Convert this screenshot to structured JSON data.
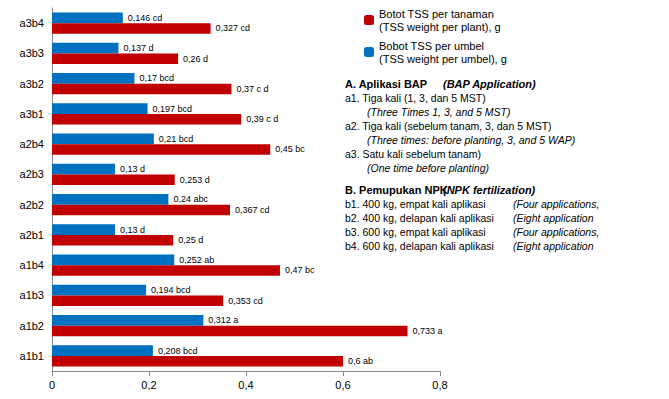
{
  "chart_data": {
    "type": "bar",
    "orientation": "horizontal",
    "categories": [
      "a1b1",
      "a1b2",
      "a1b3",
      "a1b4",
      "a2b1",
      "a2b2",
      "a2b3",
      "a2b4",
      "a3b1",
      "a3b2",
      "a3b3",
      "a3b4"
    ],
    "series": [
      {
        "name": "Botot TSS per tanaman\n(TSS weight per plant), g",
        "color": "#c00000",
        "values": [
          0.6,
          0.733,
          0.353,
          0.47,
          0.25,
          0.367,
          0.253,
          0.45,
          0.39,
          0.37,
          0.26,
          0.327
        ],
        "value_labels": [
          "0,6 ab",
          "0,733 a",
          "0,353 cd",
          "0,47 bc",
          "0,25 d",
          "0,367 cd",
          "0,253 d",
          "0,45 bc",
          "0,39 c d",
          "0,37 c d",
          "0,26 d",
          "0,327 cd"
        ]
      },
      {
        "name": "Bobot TSS per umbel\n(TSS weight per umbel), g",
        "color": "#0070c0",
        "values": [
          0.208,
          0.312,
          0.194,
          0.252,
          0.13,
          0.24,
          0.13,
          0.21,
          0.197,
          0.17,
          0.137,
          0.146
        ],
        "value_labels": [
          "0,208 bcd",
          "0,312 a",
          "0,194 bcd",
          "0,252 ab",
          "0,13 d",
          "0,24 abc",
          "0,13 d",
          "0,21 bcd",
          "0,197 bcd",
          "0,17 bcd",
          "0,137 d",
          "0,146 cd"
        ]
      }
    ],
    "xlim": [
      0,
      0.8
    ],
    "xticks": [
      0,
      {
        "value": 0.2,
        "label": "0,2"
      },
      {
        "value": 0.4,
        "label": "0,4"
      },
      {
        "value": 0.6,
        "label": "0,6"
      },
      {
        "value": 0.8,
        "label": "0,8"
      }
    ],
    "grid": false,
    "data_labels": true,
    "legend": "top-right",
    "annotations": [
      {
        "heading": "A. Aplikasi BAP",
        "translation": "(BAP Application)",
        "items": [
          {
            "label": "a1. Tiga kali (1, 3, dan 5 MST)",
            "translation": "(Three Times 1, 3, and 5 MST)"
          },
          {
            "label": "a2. Tiga kali (sebelum tanam, 3, dan 5 MST)",
            "translation": "(Three times: before planting, 3, and 5 WAP)"
          },
          {
            "label": "a3. Satu kali sebelum tanam)",
            "translation": "(One time before planting)"
          }
        ]
      },
      {
        "heading": "B. Pemupukan NPK",
        "translation": "(NPK fertilization)",
        "items": [
          {
            "label": "b1. 400 kg, empat kali aplikasi",
            "translation": "(Four applications,"
          },
          {
            "label": "b2. 400 kg, delapan kali aplikasi",
            "translation": "(Eight application"
          },
          {
            "label": "b3. 600 kg, empat kali aplikasi",
            "translation": "(Four applications,"
          },
          {
            "label": "b4. 600 kg, delapan kali aplikasi",
            "translation": "(Eight application"
          }
        ]
      }
    ]
  }
}
